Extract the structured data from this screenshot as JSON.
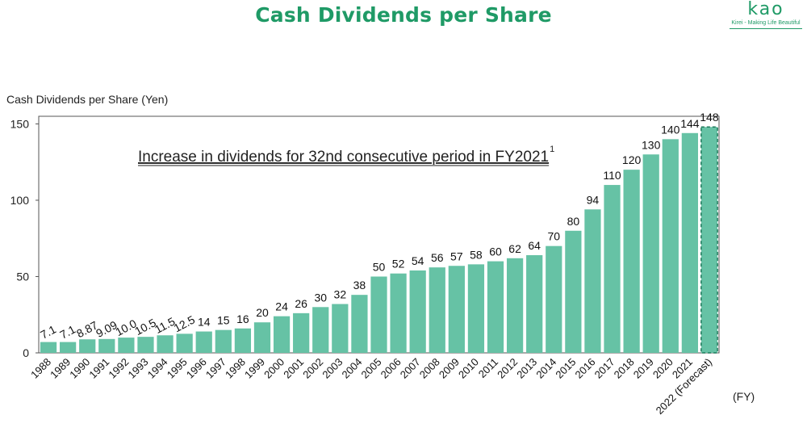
{
  "header": {
    "title": "Cash Dividends per Share"
  },
  "logo": {
    "word": "Kao",
    "tagline": "Kirei - Making Life Beautiful"
  },
  "chart_data": {
    "type": "bar",
    "title": "Cash Dividends per Share",
    "ylabel": "Cash Dividends per Share  (Yen)",
    "xlabel": "(FY)",
    "ylim": [
      0,
      155
    ],
    "yticks": [
      0,
      50,
      100,
      150
    ],
    "annotation": "Increase in dividends for 32nd consecutive period in FY2021",
    "annotation_superscript": "1",
    "categories": [
      "1988",
      "1989",
      "1990",
      "1991",
      "1992",
      "1993",
      "1994",
      "1995",
      "1996",
      "1997",
      "1998",
      "1999",
      "2000",
      "2001",
      "2002",
      "2003",
      "2004",
      "2005",
      "2006",
      "2007",
      "2008",
      "2009",
      "2010",
      "2011",
      "2012",
      "2013",
      "2014",
      "2015",
      "2016",
      "2017",
      "2018",
      "2019",
      "2020",
      "2021",
      "2022 (Forecast)"
    ],
    "values": [
      7.1,
      7.1,
      8.87,
      9.09,
      10.0,
      10.5,
      11.5,
      12.5,
      14,
      15,
      16,
      20,
      24,
      26,
      30,
      32,
      38,
      50,
      52,
      54,
      56,
      57,
      58,
      60,
      62,
      64,
      70,
      80,
      94,
      110,
      120,
      130,
      140,
      144,
      148
    ],
    "labels": [
      "7.1",
      "7.1",
      "8.87",
      "9.09",
      "10.0",
      "10.5",
      "11.5",
      "12.5",
      "14",
      "15",
      "16",
      "20",
      "24",
      "26",
      "30",
      "32",
      "38",
      "50",
      "52",
      "54",
      "56",
      "57",
      "58",
      "60",
      "62",
      "64",
      "70",
      "80",
      "94",
      "110",
      "120",
      "130",
      "140",
      "144",
      "148"
    ],
    "forecast_index": 34,
    "bar_color": "#66c2a5",
    "grid": false
  }
}
